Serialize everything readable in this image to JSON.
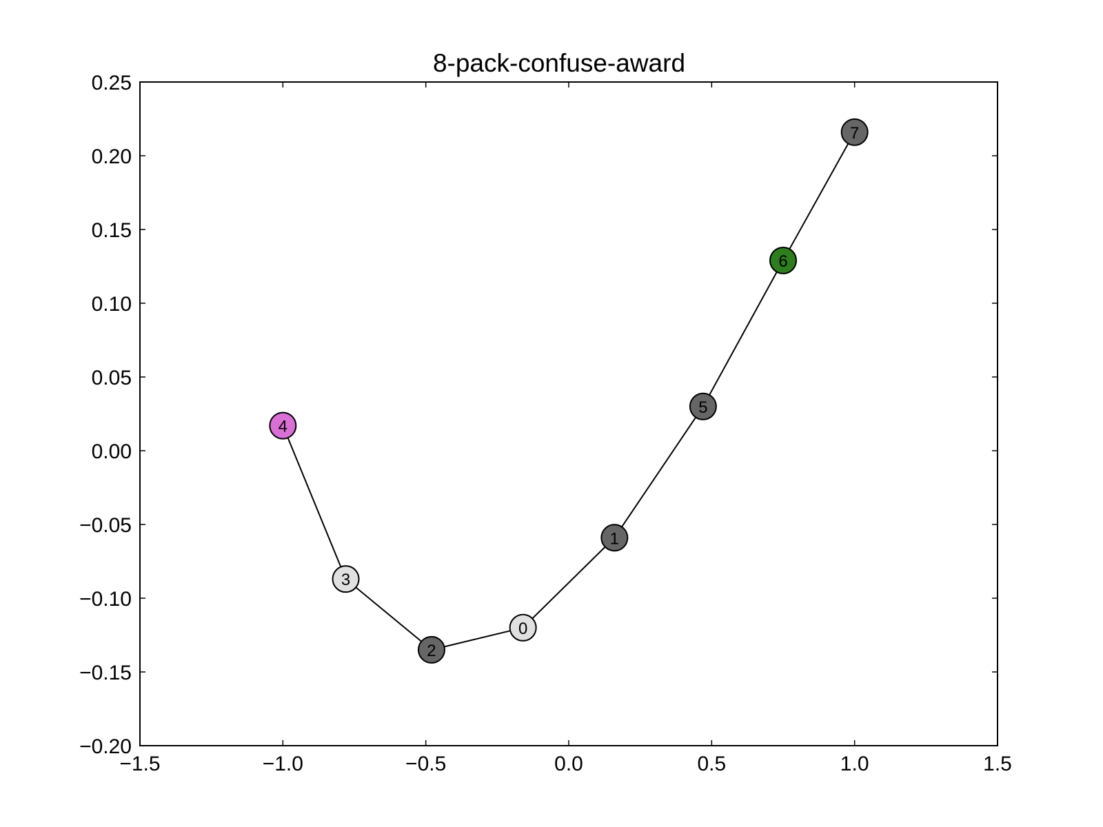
{
  "chart_data": {
    "type": "line",
    "title": "8-pack-confuse-award",
    "xlabel": "",
    "ylabel": "",
    "xlim": [
      -1.5,
      1.5
    ],
    "ylim": [
      -0.2,
      0.25
    ],
    "x_ticks": [
      -1.5,
      -1.0,
      -0.5,
      0.0,
      0.5,
      1.0,
      1.5
    ],
    "x_tick_labels": [
      "−1.5",
      "−1.0",
      "−0.5",
      "0.0",
      "0.5",
      "1.0",
      "1.5"
    ],
    "y_ticks": [
      -0.2,
      -0.15,
      -0.1,
      -0.05,
      0.0,
      0.05,
      0.1,
      0.15,
      0.2,
      0.25
    ],
    "y_tick_labels": [
      "−0.20",
      "−0.15",
      "−0.10",
      "−0.05",
      "0.00",
      "0.05",
      "0.10",
      "0.15",
      "0.20",
      "0.25"
    ],
    "grid": false,
    "path_order": [
      "4",
      "3",
      "2",
      "0",
      "1",
      "5",
      "6",
      "7"
    ],
    "nodes": [
      {
        "label": "0",
        "x": -0.16,
        "y": -0.12,
        "color": "#e0e0e0"
      },
      {
        "label": "1",
        "x": 0.16,
        "y": -0.059,
        "color": "#666666"
      },
      {
        "label": "2",
        "x": -0.48,
        "y": -0.135,
        "color": "#666666"
      },
      {
        "label": "3",
        "x": -0.78,
        "y": -0.087,
        "color": "#e0e0e0"
      },
      {
        "label": "4",
        "x": -1.0,
        "y": 0.017,
        "color": "#da70d6"
      },
      {
        "label": "5",
        "x": 0.47,
        "y": 0.03,
        "color": "#666666"
      },
      {
        "label": "6",
        "x": 0.75,
        "y": 0.129,
        "color": "#2e7d1e"
      },
      {
        "label": "7",
        "x": 1.0,
        "y": 0.216,
        "color": "#666666"
      }
    ]
  }
}
